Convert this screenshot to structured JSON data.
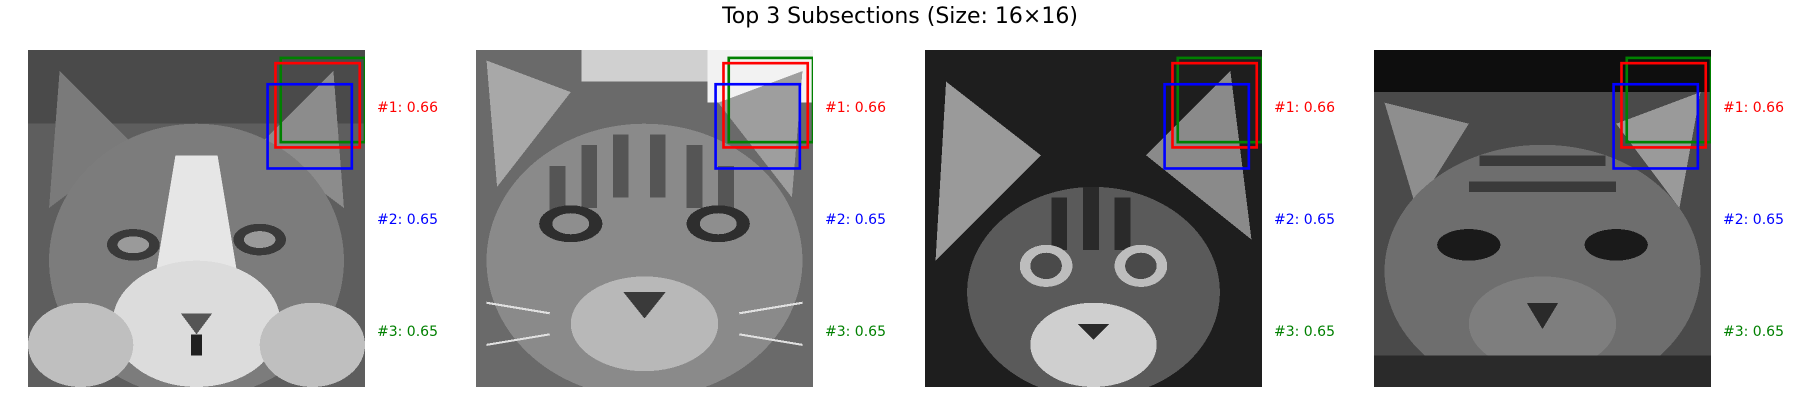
{
  "figure": {
    "title": "Top 3 Subsections (Size: 16×16)"
  },
  "colors": {
    "rank1": "#ff0000",
    "rank2": "#0000ff",
    "rank3": "#008000"
  },
  "panels": [
    {
      "image": "grayscale cat face photo 1",
      "scores": [
        {
          "label": "#1: 0.66",
          "color": "red"
        },
        {
          "label": "#2: 0.65",
          "color": "blue"
        },
        {
          "label": "#3: 0.65",
          "color": "green"
        }
      ]
    },
    {
      "image": "grayscale cat face photo 2",
      "scores": [
        {
          "label": "#1: 0.66",
          "color": "red"
        },
        {
          "label": "#2: 0.65",
          "color": "blue"
        },
        {
          "label": "#3: 0.65",
          "color": "green"
        }
      ]
    },
    {
      "image": "grayscale kitten face photo 3",
      "scores": [
        {
          "label": "#1: 0.66",
          "color": "red"
        },
        {
          "label": "#2: 0.65",
          "color": "blue"
        },
        {
          "label": "#3: 0.65",
          "color": "green"
        }
      ]
    },
    {
      "image": "grayscale cat face photo 4",
      "scores": [
        {
          "label": "#1: 0.66",
          "color": "red"
        },
        {
          "label": "#2: 0.65",
          "color": "blue"
        },
        {
          "label": "#3: 0.65",
          "color": "green"
        }
      ]
    }
  ]
}
